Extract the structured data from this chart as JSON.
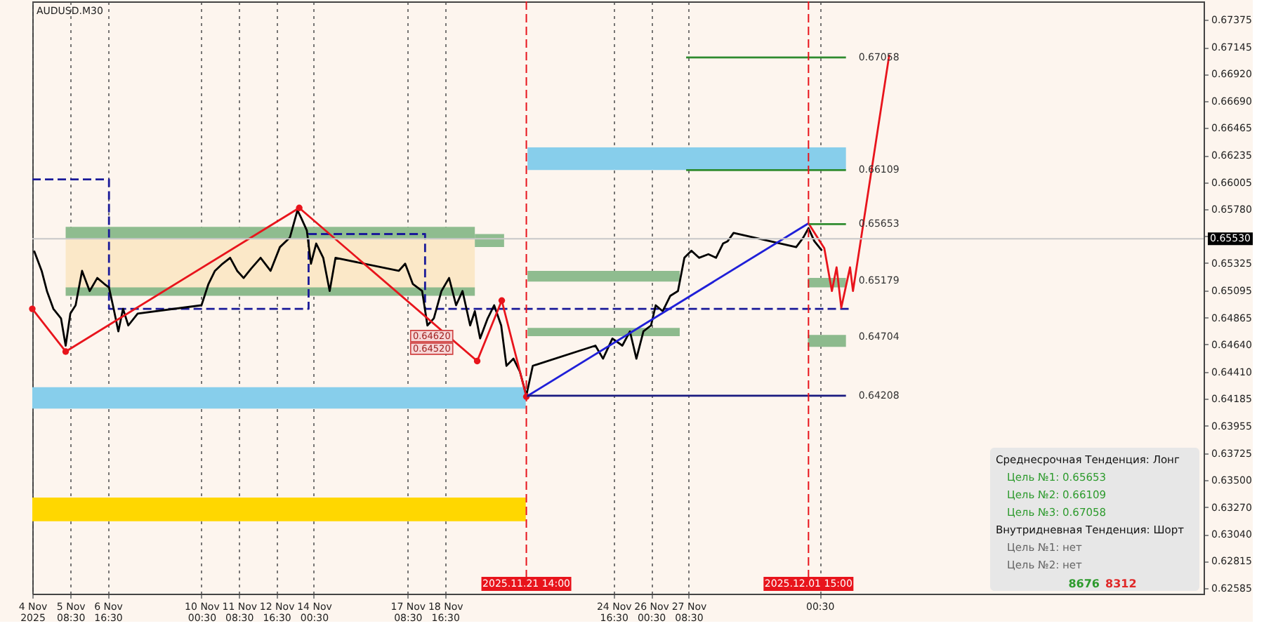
{
  "chart_data": {
    "type": "line",
    "title": "AUDUSD.M30",
    "xlim": [
      "2025-11-04T00:00",
      "2025-12-15T16:30"
    ],
    "ylim": [
      0.6254,
      0.6753
    ],
    "xticks": [
      {
        "value": "2025-11-04",
        "label": "4 Nov 2025"
      },
      {
        "value": "2025-11-05T08:30",
        "label": "5 Nov 08:30"
      },
      {
        "value": "2025-11-06T16:30",
        "label": "6 Nov 16:30"
      },
      {
        "value": "2025-11-10T00:30",
        "label": "10 Nov 00:30"
      },
      {
        "value": "2025-11-11T08:30",
        "label": "11 Nov 08:30"
      },
      {
        "value": "2025-11-12T16:30",
        "label": "12 Nov 16:30"
      },
      {
        "value": "2025-11-14T00:30",
        "label": "14 Nov 00:30"
      },
      {
        "value": "2025-11-17T08:30",
        "label": "17 Nov 08:30"
      },
      {
        "value": "2025-11-18T16:30",
        "label": "18 Nov 16:30"
      },
      {
        "value": "2025-11-24T16:30",
        "label": "24 Nov 16:30"
      },
      {
        "value": "2025-11-26T00:30",
        "label": "26 Nov 00:30"
      },
      {
        "value": "2025-11-27T08:30",
        "label": "27 Nov 08:30"
      },
      {
        "value": "2025-12-02T00:30",
        "label": "00:30"
      }
    ],
    "yticks": [
      {
        "value": 0.67375,
        "label": "0.67375"
      },
      {
        "value": 0.67145,
        "label": "0.67145"
      },
      {
        "value": 0.6692,
        "label": "0.66920"
      },
      {
        "value": 0.6669,
        "label": "0.66690"
      },
      {
        "value": 0.66465,
        "label": "0.66465"
      },
      {
        "value": 0.66235,
        "label": "0.66235"
      },
      {
        "value": 0.66005,
        "label": "0.66005"
      },
      {
        "value": 0.6578,
        "label": "0.65780"
      },
      {
        "value": 0.6555,
        "label": null
      },
      {
        "value": 0.65325,
        "label": "0.65325"
      },
      {
        "value": 0.65095,
        "label": "0.65095"
      },
      {
        "value": 0.64865,
        "label": "0.64865"
      },
      {
        "value": 0.6464,
        "label": "0.64640"
      },
      {
        "value": 0.6441,
        "label": "0.64410"
      },
      {
        "value": 0.64185,
        "label": "0.64185"
      },
      {
        "value": 0.63955,
        "label": "0.63955"
      },
      {
        "value": 0.63725,
        "label": "0.63725"
      },
      {
        "value": 0.635,
        "label": "0.63500"
      },
      {
        "value": 0.6327,
        "label": "0.63270"
      },
      {
        "value": 0.6304,
        "label": "0.63040"
      },
      {
        "value": 0.62815,
        "label": "0.62815"
      },
      {
        "value": 0.62585,
        "label": "0.62585"
      }
    ],
    "grid": "x",
    "series": [
      {
        "type": "area",
        "color": "#fbe8c8",
        "x": [
          "2025-11-05T04:30",
          "2025-11-19T18:00"
        ],
        "values": [
          null,
          null
        ],
        "upper": [
          0.6553,
          0.6553
        ],
        "lower": [
          0.6511,
          0.6511
        ]
      },
      {
        "type": "area",
        "color": "#87ceeb",
        "x": [
          "2025-11-04T00:00",
          "2025-11-21T13:30"
        ],
        "values": [
          null,
          null
        ],
        "upper": [
          0.6428,
          0.6428
        ],
        "lower": [
          0.641,
          0.641
        ]
      },
      {
        "type": "area",
        "color": "#87ceeb",
        "x": [
          "2025-11-21T15:00",
          "2025-12-02T23:00"
        ],
        "values": [
          null,
          null
        ],
        "upper": [
          0.663,
          0.663
        ],
        "lower": [
          0.6611,
          0.6611
        ]
      },
      {
        "type": "area",
        "color": "#ffd700",
        "x": [
          "2025-11-04T00:00",
          "2025-11-21T13:30"
        ],
        "values": [
          null,
          null
        ],
        "upper": [
          0.6335,
          0.6335
        ],
        "lower": [
          0.6315,
          0.6315
        ]
      },
      {
        "type": "area",
        "color": "#8fbc8f",
        "x": [
          "2025-11-05T04:30",
          "2025-11-19T18:00"
        ],
        "values": [
          null,
          null
        ],
        "upper": [
          0.6563,
          0.6563
        ],
        "lower": [
          0.6553,
          0.6553
        ]
      },
      {
        "type": "area",
        "color": "#8dba8d",
        "x": [
          "2025-11-05T04:30",
          "2025-11-19T18:00"
        ],
        "values": [
          null,
          null
        ],
        "upper": [
          0.6512,
          0.6512
        ],
        "lower": [
          0.6505,
          0.6505
        ]
      },
      {
        "type": "area",
        "color": "#8fbc8f",
        "x": [
          "2025-11-19T18:00",
          "2025-11-20T19:00"
        ],
        "values": [
          null,
          null
        ],
        "upper": [
          0.6557,
          0.6557
        ],
        "lower": [
          0.6546,
          0.6546
        ]
      },
      {
        "type": "area",
        "color": "#8fbc8f",
        "x": [
          "2025-11-21T15:00",
          "2025-11-27T01:00"
        ],
        "values": [
          null,
          null
        ],
        "upper": [
          0.6526,
          0.6526
        ],
        "lower": [
          0.6517,
          0.6517
        ]
      },
      {
        "type": "area",
        "color": "#8dba8d",
        "x": [
          "2025-11-21T15:00",
          "2025-11-27T01:00"
        ],
        "values": [
          null,
          null
        ],
        "upper": [
          0.6478,
          0.6478
        ],
        "lower": [
          0.6471,
          0.6471
        ]
      },
      {
        "type": "area",
        "color": "#8fbc8f",
        "x": [
          "2025-12-01T14:30",
          "2025-12-02T23:00"
        ],
        "values": [
          null,
          null
        ],
        "upper": [
          0.652,
          0.652
        ],
        "lower": [
          0.6512,
          0.6512
        ]
      },
      {
        "type": "area",
        "color": "#8dba8d",
        "x": [
          "2025-12-01T14:30",
          "2025-12-02T23:00"
        ],
        "values": [
          null,
          null
        ],
        "upper": [
          0.6472,
          0.6472
        ],
        "lower": [
          0.6462,
          0.6462
        ]
      },
      {
        "color": "#1a1a99",
        "line_style": "dashed",
        "x": [
          "2025-11-04T00:00",
          "2025-11-06T17:30",
          "2025-11-06T17:30",
          "2025-11-13T20:00",
          "2025-11-13T20:00",
          "2025-11-17T23:30",
          "2025-11-17T23:30",
          "2025-12-03T03:00"
        ],
        "values": [
          0.6603,
          0.6603,
          0.6494,
          0.6494,
          0.6557,
          0.6557,
          0.6494,
          0.6494
        ]
      },
      {
        "color": "#000000",
        "x": [
          "2025-11-04T01:30",
          "2025-11-04T08:00",
          "2025-11-04T12:30",
          "2025-11-04T18:00",
          "2025-11-05T00:30",
          "2025-11-05T04:30",
          "2025-11-05T08:30",
          "2025-11-05T13:00",
          "2025-11-05T18:30",
          "2025-11-06T01:00",
          "2025-11-06T07:30",
          "2025-11-06T13:30",
          "2025-11-06T17:30",
          "2025-11-06T21:30",
          "2025-11-07T01:30",
          "2025-11-07T05:30",
          "2025-11-07T10:00",
          "2025-11-07T18:00",
          "2025-11-10T00:30",
          "2025-11-10T06:30",
          "2025-11-10T12:00",
          "2025-11-10T18:30",
          "2025-11-11T01:00",
          "2025-11-11T07:00",
          "2025-11-11T12:30",
          "2025-11-11T19:00",
          "2025-11-12T03:00",
          "2025-11-12T11:30",
          "2025-11-12T19:30",
          "2025-11-13T04:00",
          "2025-11-13T10:30",
          "2025-11-13T13:30",
          "2025-11-13T18:30",
          "2025-11-13T22:00",
          "2025-11-14T02:30",
          "2025-11-14T08:30",
          "2025-11-14T14:00",
          "2025-11-14T19:00",
          "2025-11-17T01:00",
          "2025-11-17T06:30",
          "2025-11-17T13:00",
          "2025-11-17T21:00",
          "2025-11-18T01:30",
          "2025-11-18T07:00",
          "2025-11-18T13:30",
          "2025-11-18T20:00",
          "2025-11-19T02:00",
          "2025-11-19T07:30",
          "2025-11-19T14:00",
          "2025-11-19T18:00",
          "2025-11-19T22:30",
          "2025-11-20T05:00",
          "2025-11-20T10:30",
          "2025-11-20T16:30",
          "2025-11-20T21:00",
          "2025-11-21T03:00",
          "2025-11-21T08:30",
          "2025-11-21T14:00",
          "2025-11-21T19:30",
          "2025-11-24T01:00",
          "2025-11-24T07:30",
          "2025-11-24T15:30",
          "2025-11-25T00:00",
          "2025-11-25T06:30",
          "2025-11-25T12:00",
          "2025-11-25T18:00",
          "2025-11-26T00:30",
          "2025-11-26T04:30",
          "2025-11-26T10:30",
          "2025-11-26T17:00",
          "2025-11-26T23:30",
          "2025-11-27T05:00",
          "2025-11-27T11:00",
          "2025-11-27T17:30",
          "2025-11-28T01:30",
          "2025-11-28T08:00",
          "2025-11-28T14:00",
          "2025-11-28T18:00",
          "2025-11-28T23:00",
          "2025-12-01T04:30",
          "2025-12-01T10:30",
          "2025-12-01T15:00",
          "2025-12-01T20:00",
          "2025-12-02T02:30"
        ],
        "values": [
          0.6543,
          0.6526,
          0.6509,
          0.6494,
          0.6486,
          0.6463,
          0.649,
          0.6497,
          0.6526,
          0.6509,
          0.652,
          0.6515,
          0.6512,
          0.6494,
          0.6475,
          0.6494,
          0.648,
          0.649,
          0.6497,
          0.6515,
          0.6526,
          0.6532,
          0.6537,
          0.6526,
          0.652,
          0.6528,
          0.6537,
          0.6526,
          0.6546,
          0.6554,
          0.6577,
          0.6571,
          0.656,
          0.6532,
          0.6549,
          0.6537,
          0.6509,
          0.6537,
          0.6526,
          0.6532,
          0.6515,
          0.6509,
          0.648,
          0.6486,
          0.6509,
          0.652,
          0.6497,
          0.6509,
          0.648,
          0.6492,
          0.6469,
          0.6486,
          0.6497,
          0.648,
          0.6446,
          0.6452,
          0.6441,
          0.6421,
          0.6446,
          0.6463,
          0.6452,
          0.6469,
          0.6463,
          0.6475,
          0.6452,
          0.6475,
          0.648,
          0.6497,
          0.6492,
          0.6505,
          0.6509,
          0.6537,
          0.6543,
          0.6537,
          0.654,
          0.6537,
          0.6549,
          0.6551,
          0.6558,
          0.6546,
          0.6554,
          0.6562,
          0.6551,
          0.6543
        ]
      },
      {
        "color": "#e8141c",
        "marker": "circle",
        "x": [
          "2025-11-04T00:00",
          "2025-11-05T04:30",
          "2025-11-13T12:00",
          "2025-11-19T20:00",
          "2025-11-20T17:00",
          "2025-11-21T14:00"
        ],
        "values": [
          0.6494,
          0.6458,
          0.6579,
          0.645,
          0.6501,
          0.642
        ]
      },
      {
        "color": "#e8141c",
        "x": [
          "2025-12-01T15:00",
          "2025-12-02T04:30",
          "2025-12-02T11:00",
          "2025-12-02T15:00",
          "2025-12-02T19:00",
          "2025-12-03T02:30",
          "2025-12-03T05:00",
          "2025-12-04T12:00"
        ],
        "values": [
          0.6566,
          0.6545,
          0.6509,
          0.6529,
          0.6495,
          0.6529,
          0.6509,
          0.6708
        ]
      },
      {
        "color": "#1f1fd8",
        "x": [
          "2025-11-21T14:00",
          "2025-12-01T15:00"
        ],
        "values": [
          0.642,
          0.6566
        ]
      },
      {
        "color": "#2e8b2e",
        "x": [
          "2025-11-27T06:30",
          "2025-12-02T23:00"
        ],
        "values": [
          0.67058,
          0.67058
        ]
      },
      {
        "color": "#2e8b2e",
        "x": [
          "2025-11-27T06:30",
          "2025-12-02T23:00"
        ],
        "values": [
          0.66109,
          0.66109
        ]
      },
      {
        "color": "#2e8b2e",
        "x": [
          "2025-12-01T15:00",
          "2025-12-02T23:00"
        ],
        "values": [
          0.65653,
          0.65653
        ]
      },
      {
        "color": "#1a1a80",
        "x": [
          "2025-11-21T14:00",
          "2025-12-02T23:00"
        ],
        "values": [
          0.64208,
          0.64208
        ]
      }
    ],
    "ref_lines": [
      {
        "axis": "x",
        "value": "2025-11-21T14:00",
        "label": "2025.11.21 14:00",
        "color": "#e8141c",
        "line_style": "dashed"
      },
      {
        "axis": "x",
        "value": "2025-12-01T15:00",
        "label": "2025.12.01 15:00",
        "color": "#e8141c",
        "line_style": "dashed"
      },
      {
        "axis": "y",
        "value": 0.6553,
        "label": "0.65530",
        "color": "#c8c8c8"
      }
    ],
    "annotations": [
      "Среднесрочная Тенденция: Лонг",
      "Цель №1: 0.65653",
      "Цель №2: 0.66109",
      "Цель №3: 0.67058",
      "Внутридневная Тенденция: Шорт",
      "Цель №1: нет",
      "Цель №2: нет",
      "8676",
      "8312",
      "0.64620",
      "0.64520",
      {
        "text": "0.67058",
        "x": "2025-12-02T23:00",
        "y": 0.67058
      },
      {
        "text": "0.66109",
        "x": "2025-12-02T23:00",
        "y": 0.66109
      },
      {
        "text": "0.65653",
        "x": "2025-12-02T23:00",
        "y": 0.65653
      },
      {
        "text": "0.65179",
        "x": "2025-12-02T23:00",
        "y": 0.65179
      },
      {
        "text": "0.64704",
        "x": "2025-12-02T23:00",
        "y": 0.64704
      },
      {
        "text": "0.64208",
        "x": "2025-12-02T23:00",
        "y": 0.64208
      }
    ]
  }
}
